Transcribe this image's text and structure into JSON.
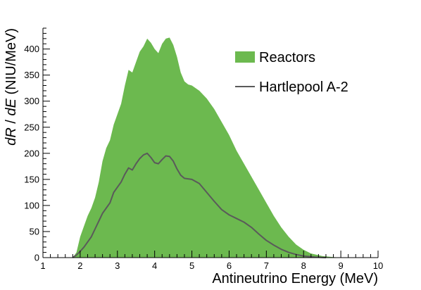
{
  "chart_data": {
    "type": "area",
    "xlabel": "Antineutrino Energy (MeV)",
    "ylabel": "dR / dE (NIU/MeV)",
    "ylabel_parts": {
      "var1": "dR",
      "slash": " / ",
      "var2": "dE",
      "units": " (NIU/MeV)"
    },
    "xlim": [
      1,
      10
    ],
    "ylim": [
      0,
      440
    ],
    "x_ticks": [
      1,
      2,
      3,
      4,
      5,
      6,
      7,
      8,
      9,
      10
    ],
    "y_ticks": [
      0,
      50,
      100,
      150,
      200,
      250,
      300,
      350,
      400
    ],
    "grid": false,
    "legend_position": "top-right",
    "series": [
      {
        "name": "Reactors",
        "style": "filled-area",
        "color": "#6cb94f",
        "points": [
          [
            1.8,
            0
          ],
          [
            1.85,
            5
          ],
          [
            1.9,
            10
          ],
          [
            2.0,
            40
          ],
          [
            2.1,
            60
          ],
          [
            2.2,
            80
          ],
          [
            2.3,
            95
          ],
          [
            2.4,
            115
          ],
          [
            2.5,
            145
          ],
          [
            2.6,
            185
          ],
          [
            2.7,
            210
          ],
          [
            2.8,
            225
          ],
          [
            2.9,
            255
          ],
          [
            3.0,
            275
          ],
          [
            3.1,
            295
          ],
          [
            3.2,
            330
          ],
          [
            3.3,
            360
          ],
          [
            3.4,
            355
          ],
          [
            3.5,
            375
          ],
          [
            3.6,
            395
          ],
          [
            3.7,
            405
          ],
          [
            3.8,
            420
          ],
          [
            3.9,
            412
          ],
          [
            4.0,
            400
          ],
          [
            4.1,
            392
          ],
          [
            4.2,
            410
          ],
          [
            4.3,
            420
          ],
          [
            4.4,
            422
          ],
          [
            4.5,
            408
          ],
          [
            4.6,
            385
          ],
          [
            4.7,
            355
          ],
          [
            4.8,
            338
          ],
          [
            4.9,
            332
          ],
          [
            5.0,
            330
          ],
          [
            5.2,
            320
          ],
          [
            5.4,
            305
          ],
          [
            5.6,
            285
          ],
          [
            5.8,
            260
          ],
          [
            6.0,
            235
          ],
          [
            6.2,
            205
          ],
          [
            6.4,
            180
          ],
          [
            6.6,
            155
          ],
          [
            6.8,
            130
          ],
          [
            7.0,
            105
          ],
          [
            7.2,
            80
          ],
          [
            7.4,
            58
          ],
          [
            7.6,
            40
          ],
          [
            7.8,
            25
          ],
          [
            8.0,
            15
          ],
          [
            8.2,
            8
          ],
          [
            8.5,
            3
          ],
          [
            8.8,
            1
          ],
          [
            9.0,
            0
          ]
        ]
      },
      {
        "name": "Hartlepool A-2",
        "style": "line",
        "color": "#5a5a5a",
        "points": [
          [
            1.8,
            0
          ],
          [
            1.9,
            5
          ],
          [
            2.0,
            12
          ],
          [
            2.1,
            20
          ],
          [
            2.2,
            30
          ],
          [
            2.3,
            40
          ],
          [
            2.4,
            55
          ],
          [
            2.5,
            70
          ],
          [
            2.6,
            85
          ],
          [
            2.7,
            95
          ],
          [
            2.8,
            105
          ],
          [
            2.9,
            125
          ],
          [
            3.0,
            135
          ],
          [
            3.1,
            145
          ],
          [
            3.2,
            160
          ],
          [
            3.3,
            172
          ],
          [
            3.4,
            168
          ],
          [
            3.5,
            180
          ],
          [
            3.6,
            190
          ],
          [
            3.7,
            197
          ],
          [
            3.8,
            200
          ],
          [
            3.9,
            192
          ],
          [
            4.0,
            182
          ],
          [
            4.1,
            180
          ],
          [
            4.2,
            188
          ],
          [
            4.3,
            195
          ],
          [
            4.4,
            194
          ],
          [
            4.5,
            185
          ],
          [
            4.6,
            170
          ],
          [
            4.7,
            158
          ],
          [
            4.8,
            152
          ],
          [
            5.0,
            150
          ],
          [
            5.2,
            142
          ],
          [
            5.4,
            125
          ],
          [
            5.6,
            108
          ],
          [
            5.8,
            92
          ],
          [
            6.0,
            82
          ],
          [
            6.2,
            75
          ],
          [
            6.4,
            68
          ],
          [
            6.6,
            58
          ],
          [
            6.8,
            45
          ],
          [
            7.0,
            33
          ],
          [
            7.2,
            24
          ],
          [
            7.4,
            16
          ],
          [
            7.6,
            10
          ],
          [
            7.8,
            6
          ],
          [
            8.0,
            3
          ],
          [
            8.3,
            1
          ],
          [
            8.6,
            0
          ]
        ]
      }
    ]
  }
}
